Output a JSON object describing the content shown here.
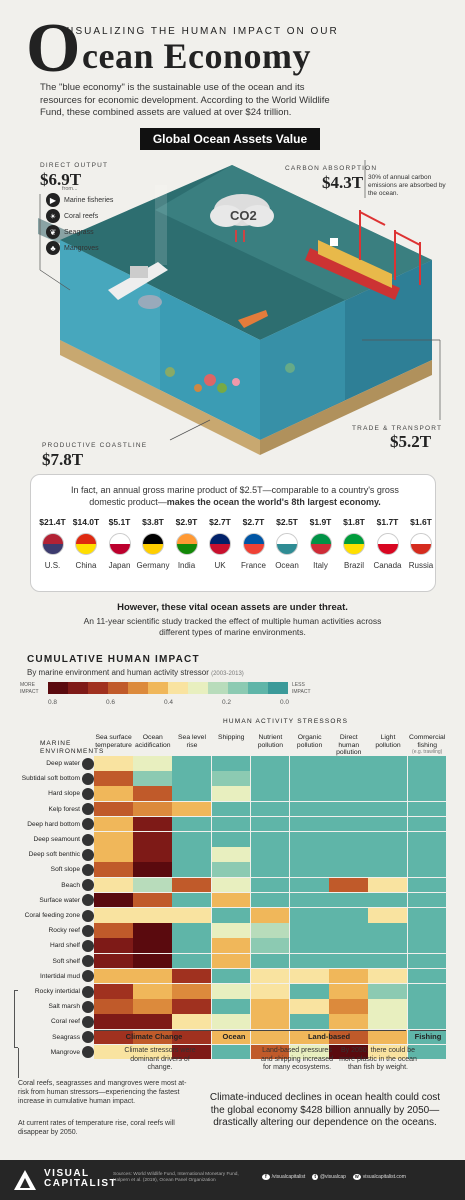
{
  "header": {
    "kicker": "VISUALIZING THE HUMAN IMPACT ON OUR",
    "big_letter": "O",
    "title": "cean Economy",
    "intro": "The \"blue economy\" is the sustainable use of the ocean and its resources for economic development. According to the World Wildlife Fund, these combined assets are valued at over $24 trillion."
  },
  "assets": {
    "banner": "Global Ocean Assets Value",
    "direct": {
      "label": "DIRECT OUTPUT",
      "value": "$6.9T",
      "from": "from...",
      "items": [
        "Marine fisheries",
        "Coral reefs",
        "Seagrass",
        "Mangroves"
      ]
    },
    "carbon": {
      "label": "CARBON ABSORPTION",
      "value": "$4.3T",
      "note": "30% of annual carbon emissions are absorbed by the ocean.",
      "co2": "CO2"
    },
    "trade": {
      "label": "TRADE & TRANSPORT",
      "value": "$5.2T"
    },
    "coast": {
      "label": "PRODUCTIVE COASTLINE",
      "value": "$7.8T"
    }
  },
  "gdp": {
    "text_a": "In fact, an annual gross marine product of $2.5T—comparable to a country's gross domestic product—",
    "text_b": "makes the ocean the world's 8th largest economy.",
    "countries": [
      {
        "v": "$21.4T",
        "n": "U.S.",
        "c1": "#b22234",
        "c2": "#3c3b6e"
      },
      {
        "v": "$14.0T",
        "n": "China",
        "c1": "#de2910",
        "c2": "#ffde00"
      },
      {
        "v": "$5.1T",
        "n": "Japan",
        "c1": "#ffffff",
        "c2": "#bc002d"
      },
      {
        "v": "$3.8T",
        "n": "Germany",
        "c1": "#000000",
        "c2": "#ffce00"
      },
      {
        "v": "$2.9T",
        "n": "India",
        "c1": "#ff9933",
        "c2": "#138808"
      },
      {
        "v": "$2.7T",
        "n": "UK",
        "c1": "#012169",
        "c2": "#c8102e"
      },
      {
        "v": "$2.7T",
        "n": "France",
        "c1": "#0055a4",
        "c2": "#ef4135"
      },
      {
        "v": "$2.5T",
        "n": "Ocean",
        "c1": "#ffffff",
        "c2": "#2f8c94"
      },
      {
        "v": "$1.9T",
        "n": "Italy",
        "c1": "#009246",
        "c2": "#ce2b37"
      },
      {
        "v": "$1.8T",
        "n": "Brazil",
        "c1": "#009c3b",
        "c2": "#ffdf00"
      },
      {
        "v": "$1.7T",
        "n": "Canada",
        "c1": "#ffffff",
        "c2": "#d80621"
      },
      {
        "v": "$1.6T",
        "n": "Russia",
        "c1": "#ffffff",
        "c2": "#d52b1e"
      }
    ]
  },
  "threat": {
    "head": "However, these vital ocean assets are under threat.",
    "text": "An 11-year scientific study tracked the effect of multiple human activities across different types of marine environments."
  },
  "impact": {
    "heading": "CUMULATIVE HUMAN IMPACT",
    "sub": "By marine environment and human activity stressor",
    "years": "(2003-2013)",
    "more": "MORE IMPACT",
    "less": "LESS IMPACT",
    "ticks": [
      "0.8",
      "0.6",
      "0.4",
      "0.2",
      "0.0"
    ],
    "stressors_title": "HUMAN ACTIVITY STRESSORS",
    "env_title": "MARINE ENVIRONMENTS",
    "scale_colors": [
      "#5a0a0e",
      "#7e1a17",
      "#a0311f",
      "#c05a2a",
      "#dc8a3c",
      "#f0b75a",
      "#f9e3a0",
      "#e8efbf",
      "#b8dcbb",
      "#8ccab2",
      "#5fb5a8",
      "#3b9a99"
    ]
  },
  "chart_data": {
    "type": "heatmap",
    "title": "CUMULATIVE HUMAN IMPACT",
    "subtitle": "By marine environment and human activity stressor (2003-2013)",
    "x": [
      "Sea surface temperature",
      "Ocean acidification",
      "Sea level rise",
      "Shipping",
      "Nutrient pollution",
      "Organic pollution",
      "Direct human pollution",
      "Light pollution",
      "Commercial fishing"
    ],
    "fishing_note": "(e.g. trawling)",
    "y": [
      "Deep water",
      "Subtidal soft bottom",
      "Hard slope",
      "Kelp forest",
      "Deep hard bottom",
      "Deep seamount",
      "Deep soft benthic",
      "Soft slope",
      "Beach",
      "Surface water",
      "Coral feeding zone",
      "Rocky reef",
      "Hard shelf",
      "Soft shelf",
      "Intertidal mud",
      "Rocky intertidal",
      "Salt marsh",
      "Coral reef",
      "Seagrass",
      "Mangrove"
    ],
    "values": [
      [
        0.35,
        0.3,
        0.05,
        0.1,
        0.05,
        0.05,
        0.05,
        0.05,
        0.05
      ],
      [
        0.55,
        0.15,
        0.1,
        0.15,
        0.1,
        0.05,
        0.05,
        0.05,
        0.05
      ],
      [
        0.4,
        0.55,
        0.05,
        0.3,
        0.05,
        0.05,
        0.05,
        0.05,
        0.05
      ],
      [
        0.6,
        0.5,
        0.45,
        0.1,
        0.05,
        0.05,
        0.05,
        0.05,
        0.05
      ],
      [
        0.45,
        0.75,
        0.05,
        0.05,
        0.05,
        0.05,
        0.05,
        0.05,
        0.05
      ],
      [
        0.45,
        0.75,
        0.05,
        0.05,
        0.05,
        0.05,
        0.05,
        0.05,
        0.05
      ],
      [
        0.45,
        0.75,
        0.05,
        0.3,
        0.05,
        0.05,
        0.05,
        0.05,
        0.05
      ],
      [
        0.55,
        0.85,
        0.05,
        0.15,
        0.05,
        0.05,
        0.05,
        0.05,
        0.05
      ],
      [
        0.35,
        0.2,
        0.55,
        0.3,
        0.05,
        0.05,
        0.6,
        0.35,
        0.05
      ],
      [
        0.8,
        0.6,
        0.05,
        0.45,
        0.05,
        0.05,
        0.05,
        0.05,
        0.05
      ],
      [
        0.35,
        0.35,
        0.35,
        0.1,
        0.4,
        0.05,
        0.05,
        0.35,
        0.1
      ],
      [
        0.6,
        0.8,
        0.1,
        0.3,
        0.2,
        0.05,
        0.05,
        0.05,
        0.05
      ],
      [
        0.75,
        0.8,
        0.05,
        0.4,
        0.15,
        0.05,
        0.05,
        0.05,
        0.05
      ],
      [
        0.7,
        0.85,
        0.05,
        0.45,
        0.1,
        0.05,
        0.05,
        0.05,
        0.05
      ],
      [
        0.4,
        0.4,
        0.65,
        0.05,
        0.35,
        0.35,
        0.4,
        0.35,
        0.05
      ],
      [
        0.65,
        0.45,
        0.5,
        0.3,
        0.35,
        0.1,
        0.45,
        0.15,
        0.1
      ],
      [
        0.55,
        0.5,
        0.65,
        0.05,
        0.4,
        0.35,
        0.5,
        0.3,
        0.05
      ],
      [
        0.75,
        0.75,
        0.35,
        0.3,
        0.4,
        0.1,
        0.4,
        0.3,
        0.05
      ],
      [
        0.65,
        0.6,
        0.65,
        0.4,
        0.45,
        0.4,
        0.55,
        0.4,
        0.05
      ],
      [
        0.35,
        0.35,
        0.7,
        0.05,
        0.55,
        0.3,
        0.85,
        0.35,
        0.05
      ]
    ],
    "range": [
      0,
      0.8
    ]
  },
  "groups": {
    "climate": "Climate Change",
    "ocean": "Ocean",
    "land": "Land-based",
    "fishing": "Fishing"
  },
  "notes": {
    "climate": "Climate stressors were dominant drivers of change.",
    "land": "Land-based pressures and shipping increased for many ecosystems.",
    "plastic": "By 2050, there could be more plastic in the ocean than fish by weight.",
    "coral": "Coral reefs, seagrasses and mangroves were most at-risk from human stressors—experiencing the fastest increase in cumulative human impact.",
    "coral2": "At current rates of temperature rise, coral reefs will disappear by 2050.",
    "closing": "Climate-induced declines in ocean health could cost the global economy $428 billion annually by 2050—drastically altering our dependence on the oceans."
  },
  "footer": {
    "brand_a": "VISUAL",
    "brand_b": "CAPITALIST",
    "sources": "Sources: World Wildlife Fund, International Monetary Fund, Halpern et al. (2019), Ocean Panel Organization",
    "social": [
      "/visualcapitalist",
      "@visualcap",
      "@visualcapitalist",
      "/visualcapitalist",
      "@visualcap",
      "visualcapitalist.com"
    ]
  }
}
